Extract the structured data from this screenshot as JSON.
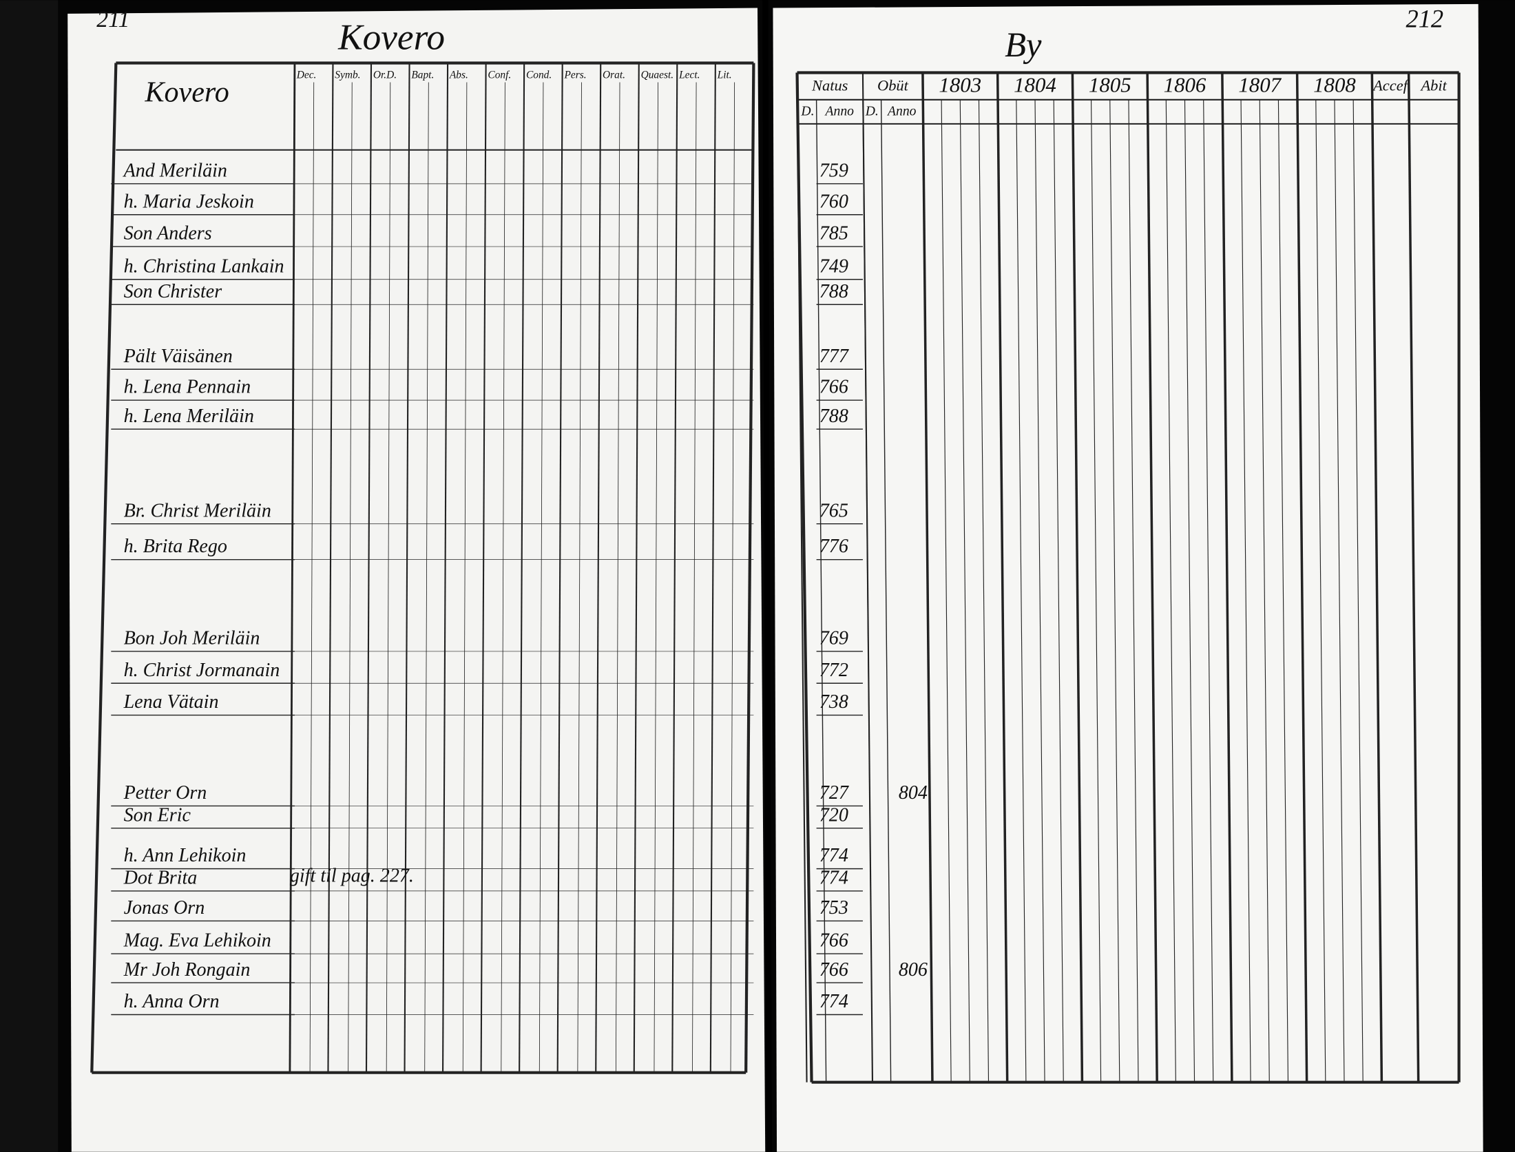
{
  "left_page": {
    "page_number": "211",
    "title": "Kovero",
    "village": "Kovero",
    "headers": [
      "Dec.",
      "Symb.",
      "Or.D.",
      "Bapt.",
      "Abs.",
      "Conf.",
      "Cond.",
      "Pers.",
      "Orat.",
      "Quaest.",
      "Lect.",
      "Lit."
    ],
    "annotation": "gift til pag. 227."
  },
  "right_page": {
    "page_number": "212",
    "title": "By",
    "headers": {
      "natus": "Natus",
      "obiit": "Obüt",
      "years": [
        "1803",
        "1804",
        "1805",
        "1806",
        "1807",
        "1808"
      ],
      "accessit": "Accef",
      "abiit": "Abit"
    },
    "subheaders": [
      "D.",
      "Anno",
      "D.",
      "Anno"
    ]
  },
  "rows": [
    {
      "name": "And Meriläin",
      "born": "759"
    },
    {
      "name": "h. Maria Jeskoin",
      "born": "760"
    },
    {
      "name": "Son Anders",
      "born": "785"
    },
    {
      "name": "h. Christina Lankain",
      "born": "749"
    },
    {
      "name": "Son Christer",
      "born": "788"
    },
    {
      "name": "Pält Väisänen",
      "born": "777"
    },
    {
      "name": "h. Lena Pennain",
      "born": "766"
    },
    {
      "name": "h. Lena Meriläin",
      "born": "788"
    },
    {
      "name": "Br. Christ Meriläin",
      "born": "765"
    },
    {
      "name": "h. Brita Rego",
      "born": "776"
    },
    {
      "name": "Bon Joh Meriläin",
      "born": "769"
    },
    {
      "name": "h. Christ Jormanain",
      "born": "772"
    },
    {
      "name": "Lena Vätain",
      "born": "738"
    },
    {
      "name": "Petter Orn",
      "born": "727",
      "died": "804"
    },
    {
      "name": "Son Eric",
      "born": "720"
    },
    {
      "name": "h. Ann Lehikoin",
      "born": "774"
    },
    {
      "name": "Dot Brita",
      "born": "774"
    },
    {
      "name": "Jonas Orn",
      "born": "753"
    },
    {
      "name": "Mag. Eva Lehikoin",
      "born": "766"
    },
    {
      "name": "Mr Joh Rongain",
      "born": "766",
      "died": "806"
    },
    {
      "name": "h. Anna Orn",
      "born": "774"
    }
  ]
}
